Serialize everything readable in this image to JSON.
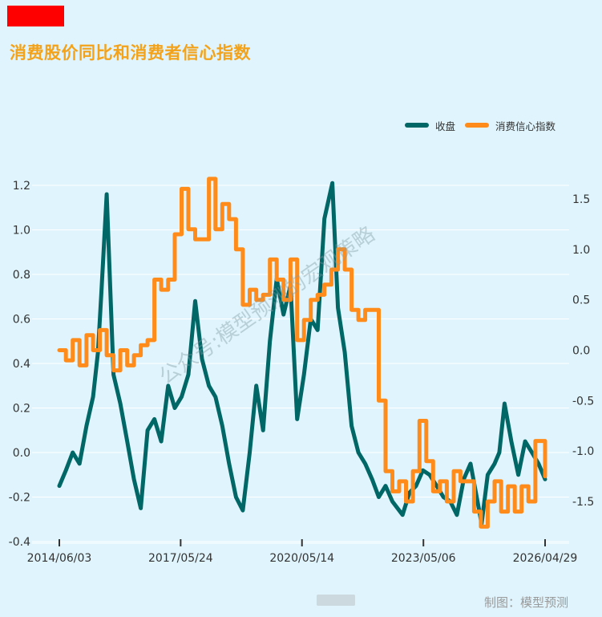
{
  "header": {
    "title": "消费股价同比和消费者信心指数",
    "watermark": "公众号:模型预测的宏观策略",
    "footer": "制图：模型预测"
  },
  "chart_data": {
    "type": "line",
    "title": "消费股价同比和消费者信心指数",
    "legend_position": "top-right",
    "grid": true,
    "x_ticks": [
      "2014/06/03",
      "2017/05/24",
      "2020/05/14",
      "2023/05/06",
      "2026/04/29"
    ],
    "xlim": [
      "2014/06/03",
      "2026/04/29"
    ],
    "y_left": {
      "ticks": [
        "-0.4",
        "-0.2",
        "0.0",
        "0.2",
        "0.4",
        "0.6",
        "0.8",
        "1.0",
        "1.2"
      ],
      "lim": [
        -0.4,
        1.2
      ]
    },
    "y_right": {
      "ticks": [
        "-1.5",
        "-1.0",
        "-0.5",
        "0.0",
        "0.5",
        "1.0",
        "1.5"
      ],
      "lim": [
        -1.95,
        1.8
      ]
    },
    "series": [
      {
        "name": "收盘",
        "axis": "left",
        "color": "#006666",
        "x": [
          "2014/06/03",
          "2014/08/01",
          "2014/10/01",
          "2014/12/01",
          "2015/02/01",
          "2015/04/01",
          "2015/05/15",
          "2015/06/15",
          "2015/08/01",
          "2015/10/01",
          "2015/12/01",
          "2016/02/01",
          "2016/04/01",
          "2016/06/01",
          "2016/08/01",
          "2016/10/01",
          "2016/12/01",
          "2017/02/01",
          "2017/04/01",
          "2017/06/01",
          "2017/08/01",
          "2017/10/01",
          "2017/12/01",
          "2018/02/01",
          "2018/04/01",
          "2018/06/01",
          "2018/08/01",
          "2018/10/01",
          "2018/12/01",
          "2019/02/01",
          "2019/04/01",
          "2019/06/01",
          "2019/08/01",
          "2019/10/01",
          "2019/12/01",
          "2020/02/01",
          "2020/04/01",
          "2020/06/01",
          "2020/08/01",
          "2020/10/01",
          "2020/12/01",
          "2021/02/10",
          "2021/04/01",
          "2021/06/01",
          "2021/08/01",
          "2021/10/01",
          "2021/12/01",
          "2022/02/01",
          "2022/04/01",
          "2022/06/01",
          "2022/08/01",
          "2022/10/31",
          "2023/01/01",
          "2023/03/01",
          "2023/05/01",
          "2023/07/01",
          "2023/09/01",
          "2023/11/01",
          "2024/01/01",
          "2024/03/01",
          "2024/05/01",
          "2024/07/01",
          "2024/09/01",
          "2024/10/08",
          "2024/12/01",
          "2025/02/01",
          "2025/03/15",
          "2025/05/01",
          "2025/07/01",
          "2025/09/01",
          "2025/11/01",
          "2026/01/01",
          "2026/03/01",
          "2026/04/29"
        ],
        "values": [
          -0.15,
          -0.08,
          0.0,
          -0.05,
          0.12,
          0.25,
          0.45,
          0.72,
          1.16,
          0.35,
          0.22,
          0.05,
          -0.12,
          -0.25,
          0.1,
          0.15,
          0.05,
          0.3,
          0.2,
          0.25,
          0.35,
          0.68,
          0.42,
          0.3,
          0.25,
          0.12,
          -0.05,
          -0.2,
          -0.26,
          0.0,
          0.3,
          0.1,
          0.5,
          0.78,
          0.62,
          0.75,
          0.15,
          0.35,
          0.6,
          0.55,
          1.05,
          1.21,
          0.65,
          0.45,
          0.12,
          0.0,
          -0.05,
          -0.12,
          -0.2,
          -0.15,
          -0.22,
          -0.28,
          -0.18,
          -0.15,
          -0.08,
          -0.1,
          -0.15,
          -0.2,
          -0.22,
          -0.28,
          -0.12,
          -0.05,
          -0.22,
          -0.32,
          -0.1,
          -0.05,
          0.0,
          0.22,
          0.05,
          -0.1,
          0.05,
          0.0,
          -0.05,
          -0.12
        ]
      },
      {
        "name": "消费信心指数",
        "axis": "right",
        "color": "#ff8c1a",
        "x": [
          "2014/06/03",
          "2014/08/01",
          "2014/10/01",
          "2014/12/01",
          "2015/02/01",
          "2015/04/01",
          "2015/06/01",
          "2015/08/01",
          "2015/10/01",
          "2015/12/01",
          "2016/02/01",
          "2016/04/01",
          "2016/06/01",
          "2016/08/01",
          "2016/10/01",
          "2016/12/01",
          "2017/02/01",
          "2017/04/01",
          "2017/06/01",
          "2017/08/01",
          "2017/10/01",
          "2017/12/01",
          "2018/02/01",
          "2018/04/01",
          "2018/06/01",
          "2018/08/01",
          "2018/10/01",
          "2018/12/01",
          "2019/02/01",
          "2019/04/01",
          "2019/06/01",
          "2019/08/01",
          "2019/10/01",
          "2019/12/01",
          "2020/02/01",
          "2020/04/01",
          "2020/06/01",
          "2020/08/01",
          "2020/10/01",
          "2020/12/01",
          "2021/02/01",
          "2021/04/01",
          "2021/06/01",
          "2021/08/01",
          "2021/10/01",
          "2021/12/01",
          "2022/02/01",
          "2022/03/01",
          "2022/04/01",
          "2022/06/01",
          "2022/08/01",
          "2022/10/01",
          "2022/12/01",
          "2023/02/01",
          "2023/04/01",
          "2023/06/01",
          "2023/08/01",
          "2023/10/01",
          "2023/12/01",
          "2024/02/01",
          "2024/04/01",
          "2024/06/01",
          "2024/08/01",
          "2024/10/01",
          "2024/12/01",
          "2025/02/01",
          "2025/04/01",
          "2025/06/01",
          "2025/08/01",
          "2025/10/01",
          "2025/12/01",
          "2026/02/01",
          "2026/04/29"
        ],
        "values": [
          0.0,
          -0.1,
          0.1,
          -0.15,
          0.15,
          0.0,
          0.2,
          -0.05,
          -0.2,
          0.0,
          -0.15,
          -0.05,
          0.05,
          0.1,
          0.7,
          0.6,
          0.7,
          1.15,
          1.6,
          1.2,
          1.1,
          1.1,
          1.7,
          1.2,
          1.45,
          1.3,
          1.0,
          0.45,
          0.6,
          0.5,
          0.55,
          0.9,
          0.7,
          0.5,
          0.9,
          0.1,
          0.3,
          0.5,
          0.55,
          0.65,
          0.8,
          1.0,
          0.8,
          0.4,
          0.3,
          0.4,
          0.4,
          0.4,
          -0.5,
          -1.2,
          -1.4,
          -1.3,
          -1.5,
          -1.2,
          -0.7,
          -1.1,
          -1.4,
          -1.3,
          -1.5,
          -1.2,
          -1.3,
          -1.3,
          -1.6,
          -1.75,
          -1.5,
          -1.3,
          -1.6,
          -1.35,
          -1.6,
          -1.35,
          -1.5,
          -0.9,
          -1.25
        ]
      }
    ]
  }
}
